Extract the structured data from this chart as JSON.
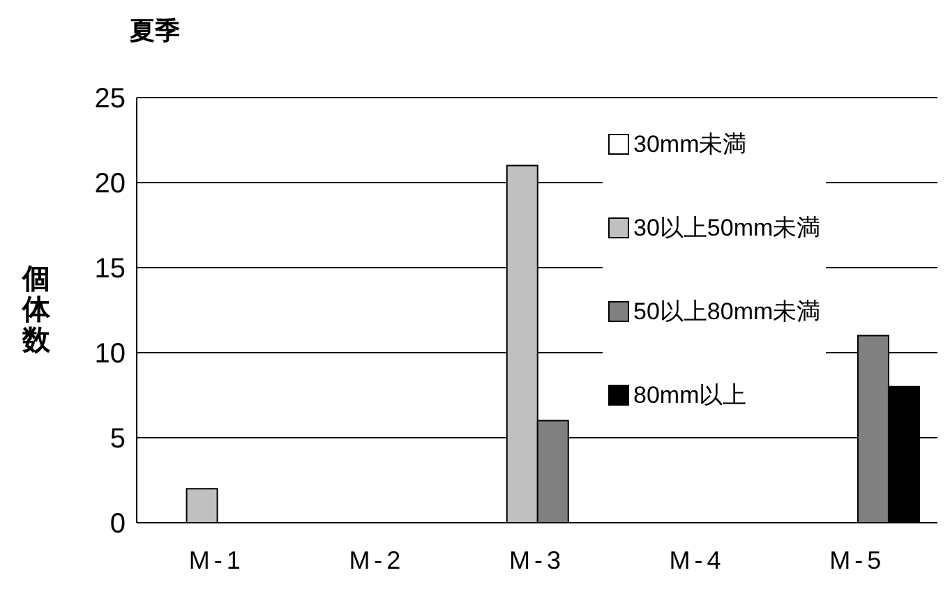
{
  "chart_data": {
    "type": "bar",
    "title": "夏季",
    "ylabel": "個体数",
    "categories": [
      "M-1",
      "M-2",
      "M-3",
      "M-4",
      "M-5"
    ],
    "series": [
      {
        "name": "30mm未満",
        "color": "#ffffff",
        "values": [
          0,
          0,
          0,
          0,
          0
        ]
      },
      {
        "name": "30以上50mm未満",
        "color": "#c0c0c0",
        "values": [
          2,
          0,
          21,
          0,
          0
        ]
      },
      {
        "name": "50以上80mm未満",
        "color": "#808080",
        "values": [
          0,
          0,
          6,
          0,
          11
        ]
      },
      {
        "name": "80mm以上",
        "color": "#000000",
        "values": [
          0,
          0,
          0,
          0,
          8
        ]
      }
    ],
    "ylim": [
      0,
      25
    ],
    "yticks": [
      0,
      5,
      10,
      15,
      20,
      25
    ],
    "grid": "y",
    "legend": "top right"
  }
}
